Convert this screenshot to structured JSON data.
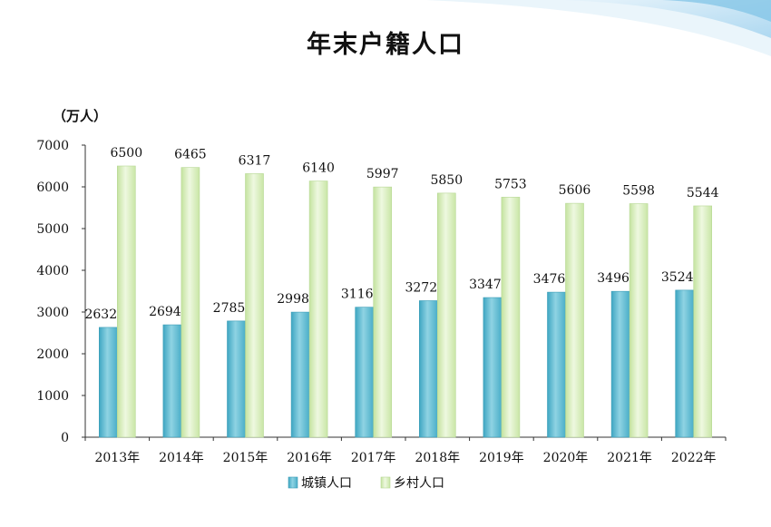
{
  "chart_data": {
    "type": "bar",
    "title": "年末户籍人口",
    "unit_label": "（万人）",
    "categories": [
      "2013年",
      "2014年",
      "2015年",
      "2016年",
      "2017年",
      "2018年",
      "2019年",
      "2020年",
      "2021年",
      "2022年"
    ],
    "series": [
      {
        "name": "城镇人口",
        "color": "#6cc0d4",
        "values": [
          2632,
          2694,
          2785,
          2998,
          3116,
          3272,
          3347,
          3476,
          3496,
          3524
        ]
      },
      {
        "name": "乡村人口",
        "color": "#d6ecb8",
        "values": [
          6500,
          6465,
          6317,
          6140,
          5997,
          5850,
          5753,
          5606,
          5598,
          5544
        ]
      }
    ],
    "ylim": [
      0,
      7000
    ],
    "yticks": [
      0,
      1000,
      2000,
      3000,
      4000,
      5000,
      6000,
      7000
    ],
    "legend_position": "bottom",
    "grid": false
  }
}
